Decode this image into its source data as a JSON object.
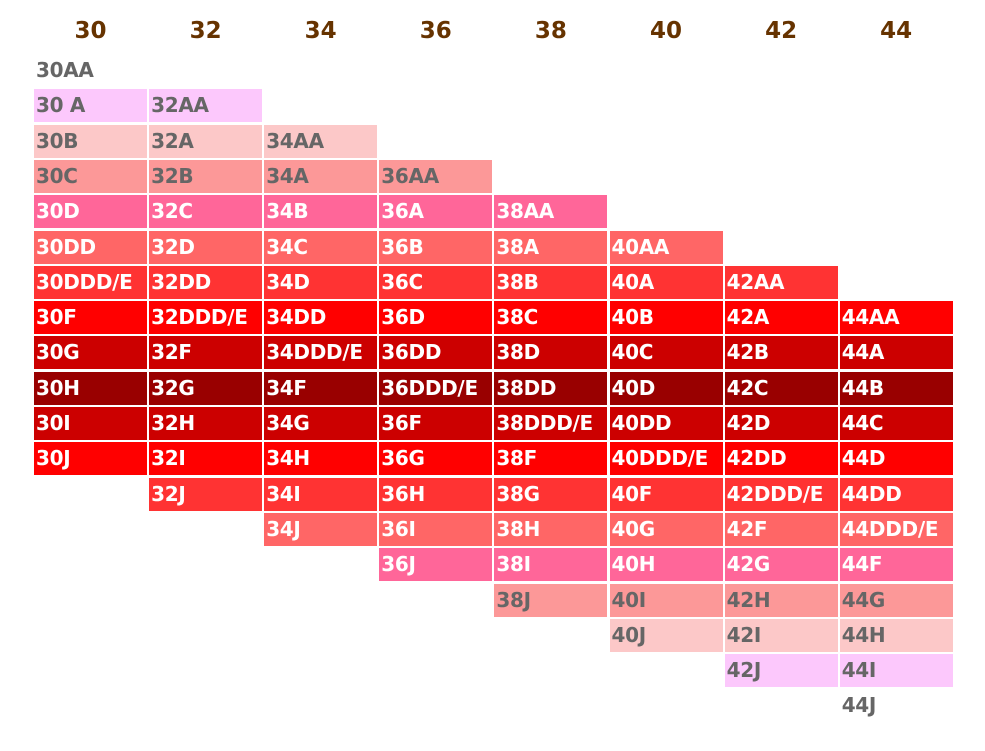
{
  "chart": {
    "columns": [
      {
        "band": "30",
        "sizes": [
          "30AA",
          "30 A",
          "30B",
          "30C",
          "30D",
          "30DD",
          "30DDD/E",
          "30F",
          "30G",
          "30H",
          "30I",
          "30J"
        ]
      },
      {
        "band": "32",
        "sizes": [
          "32AA",
          "32A",
          "32B",
          "32C",
          "32D",
          "32DD",
          "32DDD/E",
          "32F",
          "32G",
          "32H",
          "32I",
          "32J"
        ]
      },
      {
        "band": "34",
        "sizes": [
          "34AA",
          "34A",
          "34B",
          "34C",
          "34D",
          "34DD",
          "34DDD/E",
          "34F",
          "34G",
          "34H",
          "34I",
          "34J"
        ]
      },
      {
        "band": "36",
        "sizes": [
          "36AA",
          "36A",
          "36B",
          "36C",
          "36D",
          "36DD",
          "36DDD/E",
          "36F",
          "36G",
          "36H",
          "36I",
          "36J"
        ]
      },
      {
        "band": "38",
        "sizes": [
          "38AA",
          "38A",
          "38B",
          "38C",
          "38D",
          "38DD",
          "38DDD/E",
          "38F",
          "38G",
          "38H",
          "38I",
          "38J"
        ]
      },
      {
        "band": "40",
        "sizes": [
          "40AA",
          "40A",
          "40B",
          "40C",
          "40D",
          "40DD",
          "40DDD/E",
          "40F",
          "40G",
          "40H",
          "40I",
          "40J"
        ]
      },
      {
        "band": "42",
        "sizes": [
          "42AA",
          "42A",
          "42B",
          "42C",
          "42D",
          "42DD",
          "42DDD/E",
          "42F",
          "42G",
          "42H",
          "42I",
          "42J"
        ]
      },
      {
        "band": "44",
        "sizes": [
          "44AA",
          "44A",
          "44B",
          "44C",
          "44D",
          "44DD",
          "44DDD/E",
          "44F",
          "44G",
          "44H",
          "44I",
          "44J"
        ]
      }
    ],
    "row_colors": [
      "#ffffff",
      "#fcc8fc",
      "#fcc8c8",
      "#fc9898",
      "#ff6699",
      "#ff6666",
      "#ff3333",
      "#ff0000",
      "#cc0000",
      "#990000",
      "#cc0000",
      "#ff0000",
      "#ff3333",
      "#ff6666",
      "#ff6699",
      "#fc9898",
      "#fcc8c8",
      "#fcc8fc",
      "#ffffff"
    ],
    "text_dark": "#666666",
    "text_light": "#ffffff",
    "header_color": "#663300"
  }
}
